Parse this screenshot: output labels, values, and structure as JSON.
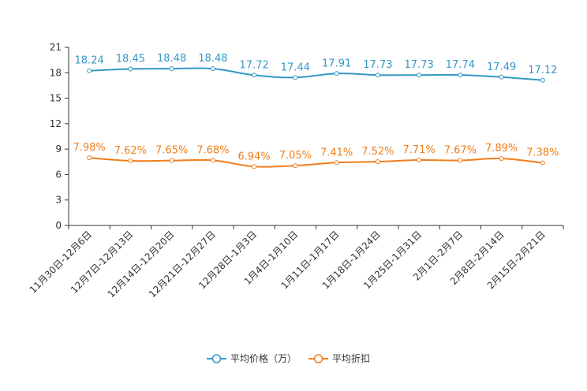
{
  "chart_data": {
    "type": "line",
    "categories": [
      "11月30日-12月6日",
      "12月7日-12月13日",
      "12月14日-12月20日",
      "12月21日-12月27日",
      "12月28日-1月3日",
      "1月4日-1月10日",
      "1月11日-1月17日",
      "1月18日-1月24日",
      "1月25日-1月31日",
      "2月1日-2月7日",
      "2月8日-2月14日",
      "2月15日-2月21日"
    ],
    "series": [
      {
        "name": "平均价格（万）",
        "color": "#3398c7",
        "values": [
          18.24,
          18.45,
          18.48,
          18.48,
          17.72,
          17.44,
          17.91,
          17.73,
          17.73,
          17.74,
          17.49,
          17.12
        ],
        "labels": [
          "18.24",
          "18.45",
          "18.48",
          "18.48",
          "17.72",
          "17.44",
          "17.91",
          "17.73",
          "17.73",
          "17.74",
          "17.49",
          "17.12"
        ]
      },
      {
        "name": "平均折扣",
        "color": "#f07d1a",
        "values": [
          7.98,
          7.62,
          7.65,
          7.68,
          6.94,
          7.05,
          7.41,
          7.52,
          7.71,
          7.67,
          7.89,
          7.38
        ],
        "labels": [
          "7.98%",
          "7.62%",
          "7.65%",
          "7.68%",
          "6.94%",
          "7.05%",
          "7.41%",
          "7.52%",
          "7.71%",
          "7.67%",
          "7.89%",
          "7.38%"
        ]
      }
    ],
    "yticks": [
      "0",
      "3",
      "6",
      "9",
      "12",
      "15",
      "18",
      "21"
    ],
    "ylim": [
      0,
      21
    ],
    "title": "",
    "xlabel": "",
    "ylabel": "",
    "legend_position": "bottom-center",
    "grid": false
  }
}
